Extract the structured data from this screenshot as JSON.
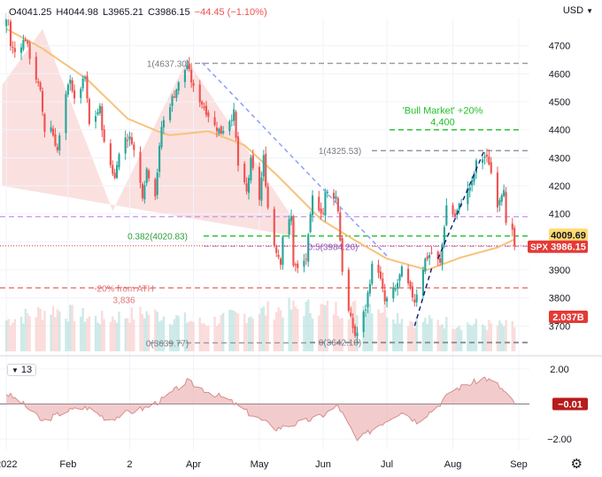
{
  "header": {
    "open": "O4041.25",
    "high": "H4044.98",
    "low": "L3965.21",
    "close": "C3986.15",
    "change": "−44.45 (−1.10%)",
    "currency": "USD",
    "currency_icon": "chevron-down-icon"
  },
  "oscillator": {
    "period_label": "13"
  },
  "colors": {
    "up": "#26a69a",
    "down": "#ef5350",
    "ma": "#f7c27a",
    "fib_green": "#22c02b",
    "price_tag": "#ffdb70",
    "spx_tag": "#e53935"
  },
  "chart_data": {
    "type": "candlestick",
    "symbol": "SPX",
    "price_axis": {
      "ylim": [
        3600,
        4800
      ],
      "ticks": [
        3700,
        3800,
        3900,
        4000,
        4100,
        4200,
        4300,
        4400,
        4500,
        4600,
        4700
      ]
    },
    "time_axis": {
      "xlim": [
        "2021-12-31",
        "2022-09-06"
      ],
      "labels": [
        {
          "text": "2022",
          "date": "2022-01-03"
        },
        {
          "text": "Feb",
          "date": "2022-02-01"
        },
        {
          "text": "2",
          "date": "2022-03-02"
        },
        {
          "text": "Apr",
          "date": "2022-04-01"
        },
        {
          "text": "May",
          "date": "2022-05-02"
        },
        {
          "text": "Jun",
          "date": "2022-06-01"
        },
        {
          "text": "Jul",
          "date": "2022-07-01"
        },
        {
          "text": "Aug",
          "date": "2022-08-01"
        },
        {
          "text": "Sep",
          "date": "2022-09-01"
        }
      ]
    },
    "close_anchors": [
      [
        "2022-01-03",
        4796
      ],
      [
        "2022-01-04",
        4793
      ],
      [
        "2022-01-05",
        4700
      ],
      [
        "2022-01-07",
        4677
      ],
      [
        "2022-01-12",
        4726
      ],
      [
        "2022-01-14",
        4662
      ],
      [
        "2022-01-19",
        4532
      ],
      [
        "2022-01-21",
        4398
      ],
      [
        "2022-01-24",
        4410
      ],
      [
        "2022-01-27",
        4326
      ],
      [
        "2022-01-31",
        4516
      ],
      [
        "2022-02-02",
        4589
      ],
      [
        "2022-02-04",
        4500
      ],
      [
        "2022-02-09",
        4587
      ],
      [
        "2022-02-11",
        4418
      ],
      [
        "2022-02-16",
        4475
      ],
      [
        "2022-02-18",
        4349
      ],
      [
        "2022-02-23",
        4226
      ],
      [
        "2022-02-24",
        4288
      ],
      [
        "2022-02-28",
        4374
      ],
      [
        "2022-03-03",
        4363
      ],
      [
        "2022-03-08",
        4170
      ],
      [
        "2022-03-10",
        4260
      ],
      [
        "2022-03-14",
        4173
      ],
      [
        "2022-03-17",
        4411
      ],
      [
        "2022-03-22",
        4512
      ],
      [
        "2022-03-29",
        4632
      ],
      [
        "2022-04-01",
        4546
      ],
      [
        "2022-04-06",
        4481
      ],
      [
        "2022-04-11",
        4413
      ],
      [
        "2022-04-14",
        4392
      ],
      [
        "2022-04-20",
        4460
      ],
      [
        "2022-04-22",
        4272
      ],
      [
        "2022-04-26",
        4175
      ],
      [
        "2022-04-28",
        4288
      ],
      [
        "2022-05-02",
        4155
      ],
      [
        "2022-05-04",
        4300
      ],
      [
        "2022-05-06",
        4123
      ],
      [
        "2022-05-09",
        3991
      ],
      [
        "2022-05-12",
        3930
      ],
      [
        "2022-05-13",
        4023
      ],
      [
        "2022-05-17",
        4088
      ],
      [
        "2022-05-18",
        3923
      ],
      [
        "2022-05-20",
        3901
      ],
      [
        "2022-05-24",
        3941
      ],
      [
        "2022-05-27",
        4158
      ],
      [
        "2022-06-01",
        4101
      ],
      [
        "2022-06-02",
        4177
      ],
      [
        "2022-06-07",
        4161
      ],
      [
        "2022-06-08",
        4115
      ],
      [
        "2022-06-10",
        3901
      ],
      [
        "2022-06-13",
        3750
      ],
      [
        "2022-06-16",
        3667
      ],
      [
        "2022-06-17",
        3675
      ],
      [
        "2022-06-21",
        3765
      ],
      [
        "2022-06-24",
        3912
      ],
      [
        "2022-06-27",
        3900
      ],
      [
        "2022-06-30",
        3785
      ],
      [
        "2022-07-05",
        3831
      ],
      [
        "2022-07-08",
        3899
      ],
      [
        "2022-07-14",
        3790
      ],
      [
        "2022-07-19",
        3937
      ],
      [
        "2022-07-22",
        3962
      ],
      [
        "2022-07-26",
        3921
      ],
      [
        "2022-07-29",
        4130
      ],
      [
        "2022-08-02",
        4091
      ],
      [
        "2022-08-05",
        4145
      ],
      [
        "2022-08-10",
        4210
      ],
      [
        "2022-08-12",
        4280
      ],
      [
        "2022-08-16",
        4305
      ],
      [
        "2022-08-18",
        4284
      ],
      [
        "2022-08-22",
        4137
      ],
      [
        "2022-08-25",
        4199
      ],
      [
        "2022-08-26",
        4057
      ],
      [
        "2022-08-29",
        4030
      ],
      [
        "2022-08-30",
        3986
      ]
    ],
    "moving_average_anchors": [
      [
        "2022-01-03",
        4760
      ],
      [
        "2022-01-20",
        4690
      ],
      [
        "2022-02-10",
        4580
      ],
      [
        "2022-03-01",
        4440
      ],
      [
        "2022-03-20",
        4380
      ],
      [
        "2022-04-08",
        4395
      ],
      [
        "2022-04-25",
        4345
      ],
      [
        "2022-05-10",
        4240
      ],
      [
        "2022-05-31",
        4080
      ],
      [
        "2022-06-15",
        4010
      ],
      [
        "2022-07-01",
        3940
      ],
      [
        "2022-07-20",
        3900
      ],
      [
        "2022-08-05",
        3945
      ],
      [
        "2022-08-22",
        3980
      ],
      [
        "2022-08-30",
        4009
      ]
    ],
    "volume_anchors": [
      [
        "2022-01-03",
        2.5
      ],
      [
        "2022-01-24",
        3.4
      ],
      [
        "2022-02-15",
        2.6
      ],
      [
        "2022-03-11",
        3.1
      ],
      [
        "2022-04-05",
        2.3
      ],
      [
        "2022-05-09",
        3.4
      ],
      [
        "2022-05-23",
        3.5
      ],
      [
        "2022-06-14",
        3.4
      ],
      [
        "2022-06-24",
        3.9
      ],
      [
        "2022-07-11",
        2.5
      ],
      [
        "2022-08-01",
        2.3
      ],
      [
        "2022-08-19",
        2.1
      ],
      [
        "2022-08-30",
        2.04
      ]
    ],
    "volume_last": "2.037B",
    "horizontal_levels": [
      {
        "name": "resistance-4637",
        "price": 4637.3,
        "label": "1(4637.30)",
        "style": "dashed-gray"
      },
      {
        "name": "bull-market",
        "price": 4400,
        "label": "'Bull Market' +20%\n4,400",
        "style": "dashed-green"
      },
      {
        "name": "high-4325",
        "price": 4325.53,
        "label": "1(4325.53)",
        "style": "dashed-gray"
      },
      {
        "name": "violet-4090",
        "price": 4090,
        "label": "",
        "style": "dashed-violet"
      },
      {
        "name": "fib-382",
        "price": 4020.83,
        "label": "0.382(4020.83)",
        "style": "dashed-green"
      },
      {
        "name": "fib-5",
        "price": 3984.26,
        "label": "0.5(3984.26)",
        "style": "dashed-violet"
      },
      {
        "name": "bear-market",
        "price": 3836,
        "label": "-20% from ATH\n3,836",
        "style": "dashed-red"
      },
      {
        "name": "low-3639",
        "price": 3639.77,
        "label": "0(3639.77)",
        "style": "dashed-gray"
      },
      {
        "name": "low-3642",
        "price": 3642.1,
        "label": "0(3642.10)",
        "style": "dashed-gray"
      }
    ],
    "trendlines": [
      {
        "name": "descending-trendline",
        "from": [
          "2022-04-05",
          4640
        ],
        "to": [
          "2022-07-01",
          3950
        ],
        "style": "dashed-blue"
      },
      {
        "name": "ascending-trendline-1",
        "from": [
          "2022-07-14",
          3700
        ],
        "to": [
          "2022-07-22",
          3905
        ],
        "style": "dashed-navy"
      },
      {
        "name": "ascending-trendline-2",
        "from": [
          "2022-07-25",
          3940
        ],
        "to": [
          "2022-08-16",
          4330
        ],
        "style": "dashed-navy"
      }
    ],
    "pattern_shape": {
      "name": "head-and-shoulders",
      "points": [
        [
          "2022-01-01",
          4560
        ],
        [
          "2022-01-20",
          4760
        ],
        [
          "2022-02-22",
          4110
        ],
        [
          "2022-03-29",
          4650
        ],
        [
          "2022-05-19",
          4070
        ],
        [
          "2022-05-19",
          4020
        ],
        [
          "2022-01-01",
          4200
        ]
      ]
    },
    "price_tags": [
      {
        "name": "ma-price-tag",
        "text": "4009.69",
        "price": 4009.69
      },
      {
        "name": "last-price-tag",
        "text": "3986.15",
        "price": 3986.15,
        "symbol_text": "SPX"
      }
    ],
    "oscillator": {
      "type": "area",
      "ylim": [
        -2.6,
        2.6
      ],
      "ticks": [
        {
          "v": 2,
          "text": "2.00"
        },
        {
          "v": -2,
          "text": "−2.00"
        }
      ],
      "zero_line": true,
      "last_value": "−0.01",
      "anchors": [
        [
          "2022-01-03",
          0.6
        ],
        [
          "2022-01-10",
          0.1
        ],
        [
          "2022-01-20",
          -1.0
        ],
        [
          "2022-01-31",
          -0.4
        ],
        [
          "2022-02-10",
          -0.2
        ],
        [
          "2022-02-20",
          -0.9
        ],
        [
          "2022-03-01",
          -0.5
        ],
        [
          "2022-03-10",
          -0.2
        ],
        [
          "2022-03-18",
          0.3
        ],
        [
          "2022-03-29",
          1.3
        ],
        [
          "2022-04-08",
          0.7
        ],
        [
          "2022-04-18",
          0.2
        ],
        [
          "2022-04-28",
          -0.6
        ],
        [
          "2022-05-10",
          -1.4
        ],
        [
          "2022-05-20",
          -1.1
        ],
        [
          "2022-05-31",
          -0.7
        ],
        [
          "2022-06-08",
          -0.1
        ],
        [
          "2022-06-17",
          -2.1
        ],
        [
          "2022-06-27",
          -1.2
        ],
        [
          "2022-07-08",
          -0.4
        ],
        [
          "2022-07-15",
          -1.0
        ],
        [
          "2022-07-25",
          -0.1
        ],
        [
          "2022-08-01",
          0.8
        ],
        [
          "2022-08-10",
          1.2
        ],
        [
          "2022-08-16",
          1.5
        ],
        [
          "2022-08-22",
          1.1
        ],
        [
          "2022-08-26",
          0.6
        ],
        [
          "2022-08-30",
          -0.01
        ]
      ]
    }
  }
}
